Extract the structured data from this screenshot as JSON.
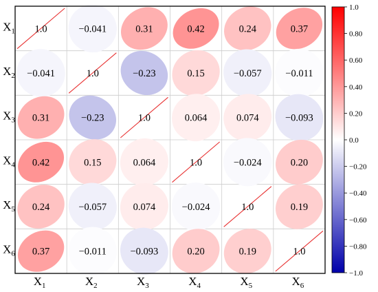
{
  "chart_data": {
    "type": "heatmap",
    "variables": [
      {
        "base": "X",
        "sub": "1"
      },
      {
        "base": "X",
        "sub": "2"
      },
      {
        "base": "X",
        "sub": "3"
      },
      {
        "base": "X",
        "sub": "4"
      },
      {
        "base": "X",
        "sub": "5"
      },
      {
        "base": "X",
        "sub": "6"
      }
    ],
    "matrix": [
      [
        1.0,
        -0.041,
        0.31,
        0.42,
        0.24,
        0.37
      ],
      [
        -0.041,
        1.0,
        -0.23,
        0.15,
        -0.057,
        -0.011
      ],
      [
        0.31,
        -0.23,
        1.0,
        0.064,
        0.074,
        -0.093
      ],
      [
        0.42,
        0.15,
        0.064,
        1.0,
        -0.024,
        0.2
      ],
      [
        0.24,
        -0.057,
        0.074,
        -0.024,
        1.0,
        0.19
      ],
      [
        0.37,
        -0.011,
        -0.093,
        0.2,
        0.19,
        1.0
      ]
    ],
    "cell_labels": [
      [
        "1.0",
        "−0.041",
        "0.31",
        "0.42",
        "0.24",
        "0.37"
      ],
      [
        "−0.041",
        "1.0",
        "−0.23",
        "0.15",
        "−0.057",
        "−0.011"
      ],
      [
        "0.31",
        "−0.23",
        "1.0",
        "0.064",
        "0.074",
        "−0.093"
      ],
      [
        "0.42",
        "0.15",
        "0.064",
        "1.0",
        "−0.024",
        "0.20"
      ],
      [
        "0.24",
        "−0.057",
        "0.074",
        "−0.024",
        "1.0",
        "0.19"
      ],
      [
        "0.37",
        "−0.011",
        "−0.093",
        "0.20",
        "0.19",
        "1.0"
      ]
    ],
    "diagonal_style": "line",
    "colorbar": {
      "range": [
        -1.0,
        1.0
      ],
      "ticks": [
        1.0,
        0.8,
        0.6,
        0.4,
        0.2,
        0.0,
        -0.2,
        -0.4,
        -0.6,
        -0.8,
        -1.0
      ],
      "tick_labels": [
        "1.0",
        "0.80",
        "0.60",
        "0.40",
        "0.20",
        "0.0",
        "−0.20",
        "−0.40",
        "−0.60",
        "−0.80",
        "−1.0"
      ],
      "colors": {
        "negative": "#0000aa",
        "zero": "#ffffff",
        "positive": "#ff0000"
      }
    },
    "diagonal_line_color": "#e83030",
    "grid": true
  }
}
